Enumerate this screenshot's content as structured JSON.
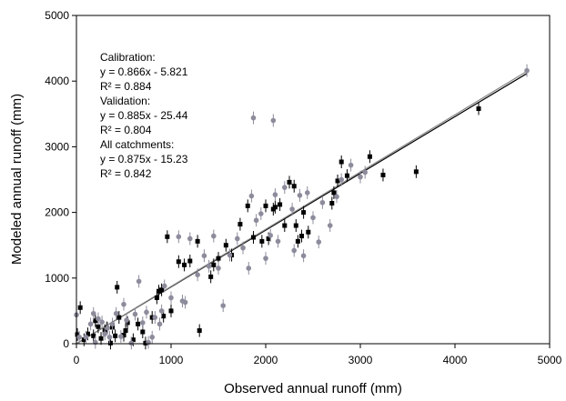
{
  "chart_data": {
    "type": "scatter",
    "xlabel": "Observed annual runoff (mm)",
    "ylabel": "Modeled annual runoff (mm)",
    "xlim": [
      0,
      5000
    ],
    "ylim": [
      0,
      5000
    ],
    "xticks": [
      "0",
      "1000",
      "2000",
      "3000",
      "4000",
      "5000"
    ],
    "yticks": [
      "0",
      "1000",
      "2000",
      "3000",
      "4000",
      "5000"
    ],
    "grid": false,
    "series": [
      {
        "color": "#000000",
        "marker": "square",
        "points": [
          [
            10,
            140
          ],
          [
            40,
            550
          ],
          [
            80,
            60
          ],
          [
            120,
            150
          ],
          [
            180,
            120
          ],
          [
            200,
            350
          ],
          [
            230,
            260
          ],
          [
            260,
            80
          ],
          [
            300,
            200
          ],
          [
            320,
            240
          ],
          [
            360,
            10
          ],
          [
            380,
            250
          ],
          [
            410,
            120
          ],
          [
            430,
            860
          ],
          [
            450,
            400
          ],
          [
            500,
            130
          ],
          [
            520,
            200
          ],
          [
            540,
            320
          ],
          [
            600,
            60
          ],
          [
            650,
            300
          ],
          [
            700,
            180
          ],
          [
            730,
            10
          ],
          [
            800,
            400
          ],
          [
            850,
            700
          ],
          [
            870,
            800
          ],
          [
            900,
            820
          ],
          [
            920,
            420
          ],
          [
            960,
            1630
          ],
          [
            1000,
            500
          ],
          [
            1080,
            1250
          ],
          [
            1140,
            1200
          ],
          [
            1200,
            1260
          ],
          [
            1280,
            1560
          ],
          [
            1300,
            200
          ],
          [
            1420,
            1020
          ],
          [
            1450,
            1200
          ],
          [
            1500,
            1300
          ],
          [
            1580,
            1500
          ],
          [
            1640,
            1350
          ],
          [
            1730,
            1820
          ],
          [
            1810,
            2100
          ],
          [
            1870,
            1620
          ],
          [
            1960,
            1560
          ],
          [
            2000,
            2100
          ],
          [
            2030,
            1600
          ],
          [
            2080,
            2050
          ],
          [
            2100,
            2080
          ],
          [
            2150,
            2120
          ],
          [
            2200,
            1800
          ],
          [
            2250,
            2460
          ],
          [
            2300,
            2400
          ],
          [
            2320,
            1800
          ],
          [
            2340,
            1560
          ],
          [
            2380,
            1640
          ],
          [
            2400,
            2000
          ],
          [
            2450,
            1700
          ],
          [
            2700,
            2140
          ],
          [
            2720,
            2300
          ],
          [
            2760,
            2480
          ],
          [
            2800,
            2770
          ],
          [
            2860,
            2560
          ],
          [
            3100,
            2850
          ],
          [
            3240,
            2570
          ],
          [
            3590,
            2620
          ],
          [
            4250,
            3580
          ]
        ]
      },
      {
        "color": "#8c8c9c",
        "marker": "circle",
        "points": [
          [
            0,
            440
          ],
          [
            30,
            100
          ],
          [
            100,
            100
          ],
          [
            150,
            300
          ],
          [
            180,
            460
          ],
          [
            200,
            20
          ],
          [
            230,
            380
          ],
          [
            270,
            330
          ],
          [
            300,
            150
          ],
          [
            330,
            240
          ],
          [
            350,
            100
          ],
          [
            380,
            300
          ],
          [
            420,
            460
          ],
          [
            470,
            110
          ],
          [
            500,
            600
          ],
          [
            530,
            360
          ],
          [
            580,
            10
          ],
          [
            620,
            450
          ],
          [
            660,
            950
          ],
          [
            700,
            320
          ],
          [
            740,
            480
          ],
          [
            760,
            20
          ],
          [
            800,
            100
          ],
          [
            830,
            400
          ],
          [
            880,
            300
          ],
          [
            900,
            500
          ],
          [
            930,
            880
          ],
          [
            1000,
            700
          ],
          [
            1080,
            1630
          ],
          [
            1120,
            650
          ],
          [
            1150,
            630
          ],
          [
            1200,
            1600
          ],
          [
            1280,
            1050
          ],
          [
            1350,
            1340
          ],
          [
            1400,
            1180
          ],
          [
            1450,
            1640
          ],
          [
            1500,
            1150
          ],
          [
            1550,
            580
          ],
          [
            1620,
            1350
          ],
          [
            1700,
            1600
          ],
          [
            1760,
            1460
          ],
          [
            1820,
            1150
          ],
          [
            1850,
            2250
          ],
          [
            1870,
            3440
          ],
          [
            1900,
            1880
          ],
          [
            1950,
            1980
          ],
          [
            2000,
            1300
          ],
          [
            2050,
            1650
          ],
          [
            2080,
            3400
          ],
          [
            2100,
            2270
          ],
          [
            2130,
            1560
          ],
          [
            2200,
            2380
          ],
          [
            2280,
            2050
          ],
          [
            2300,
            1420
          ],
          [
            2360,
            2260
          ],
          [
            2400,
            1340
          ],
          [
            2440,
            2300
          ],
          [
            2500,
            1920
          ],
          [
            2560,
            1550
          ],
          [
            2600,
            2150
          ],
          [
            2680,
            1800
          ],
          [
            2750,
            2240
          ],
          [
            2800,
            2500
          ],
          [
            2900,
            2720
          ],
          [
            3000,
            2540
          ],
          [
            3050,
            2610
          ],
          [
            4760,
            4160
          ]
        ]
      }
    ],
    "regression_lines": [
      {
        "name": "Calibration",
        "slope": 0.866,
        "intercept": -5.821,
        "x_range": [
          0,
          4760
        ],
        "color": "#000000"
      },
      {
        "name": "All catchments",
        "slope": 0.875,
        "intercept": -15.23,
        "x_range": [
          0,
          4760
        ],
        "color": "#888888"
      }
    ],
    "annotation": [
      "Calibration:",
      "y = 0.866x - 5.821",
      "R² = 0.884",
      "Validation:",
      "y = 0.885x - 25.44",
      "R² = 0.804",
      "All catchments:",
      "y = 0.875x - 15.23",
      "R² = 0.842"
    ]
  }
}
